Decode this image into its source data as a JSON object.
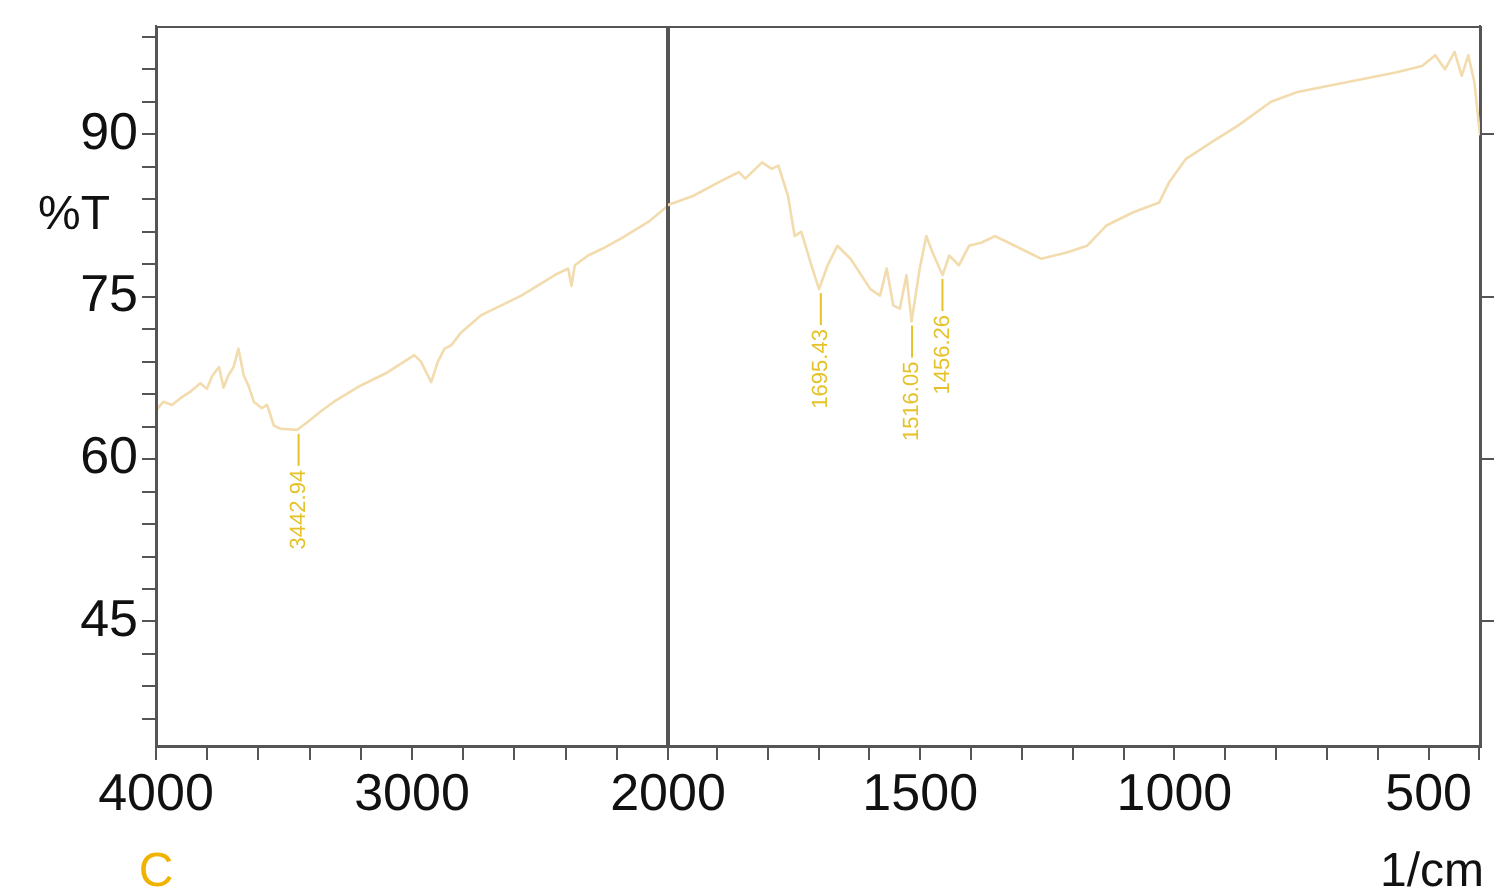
{
  "chart_data": [
    {
      "type": "line",
      "ylabel": "%T",
      "xlim": [
        4000,
        2000
      ],
      "ylim": [
        33.5,
        100
      ],
      "xticks": [
        4000,
        {
          "value": 3800,
          "label": null
        },
        {
          "value": 3600,
          "label": null
        },
        {
          "value": 3400,
          "label": null
        },
        {
          "value": 3200,
          "label": null
        },
        3000,
        {
          "value": 2800,
          "label": null
        },
        {
          "value": 2600,
          "label": null
        },
        {
          "value": 2400,
          "label": null
        },
        {
          "value": 2200,
          "label": null
        },
        2000
      ],
      "yticks": [
        {
          "value": 99,
          "label": null
        },
        {
          "value": 96,
          "label": null
        },
        {
          "value": 93,
          "label": null
        },
        90,
        {
          "value": 87,
          "label": null
        },
        {
          "value": 84,
          "label": null
        },
        {
          "value": 81,
          "label": null
        },
        {
          "value": 78,
          "label": null
        },
        75,
        {
          "value": 72,
          "label": null
        },
        {
          "value": 69,
          "label": null
        },
        {
          "value": 66,
          "label": null
        },
        {
          "value": 63,
          "label": null
        },
        60,
        {
          "value": 57,
          "label": null
        },
        {
          "value": 54,
          "label": null
        },
        {
          "value": 51,
          "label": null
        },
        {
          "value": 48,
          "label": null
        },
        45,
        {
          "value": 42,
          "label": null
        },
        {
          "value": 39,
          "label": null
        },
        {
          "value": 36,
          "label": null
        }
      ],
      "series": [
        {
          "color": "#f2dcae",
          "x": [
            4000,
            3971,
            3937,
            3906,
            3867,
            3827,
            3801,
            3780,
            3754,
            3736,
            3718,
            3697,
            3678,
            3657,
            3639,
            3618,
            3587,
            3566,
            3540,
            3514,
            3449,
            3409,
            3357,
            3305,
            3200,
            3096,
            2991,
            2965,
            2925,
            2899,
            2873,
            2847,
            2808,
            2729,
            2573,
            2442,
            2390,
            2377,
            2364,
            2312,
            2259,
            2181,
            2077,
            2000
          ],
          "values": [
            64.5,
            65.3,
            65.0,
            65.6,
            66.2,
            67.0,
            66.5,
            67.7,
            68.5,
            66.6,
            67.7,
            68.5,
            70.2,
            67.7,
            66.8,
            65.3,
            64.7,
            65.0,
            63.1,
            62.8,
            62.7,
            63.4,
            64.4,
            65.3,
            66.8,
            68.0,
            69.6,
            69.0,
            67.1,
            69.0,
            70.2,
            70.5,
            71.7,
            73.3,
            75.1,
            77.0,
            77.6,
            76.0,
            77.9,
            78.8,
            79.4,
            80.4,
            81.9,
            83.4
          ]
        }
      ],
      "annotations": [
        {
          "text": "3442.94",
          "x": 3442.94,
          "y": 62.7
        },
        "C"
      ]
    },
    {
      "type": "line",
      "xlabel": "1/cm",
      "xlim": [
        2000,
        399
      ],
      "ylim": [
        33.5,
        100
      ],
      "tick_labels": "x",
      "xticks": [
        {
          "value": 1900,
          "label": null
        },
        {
          "value": 1800,
          "label": null
        },
        {
          "value": 1700,
          "label": null
        },
        {
          "value": 1600,
          "label": null
        },
        1500,
        {
          "value": 1400,
          "label": null
        },
        {
          "value": 1300,
          "label": null
        },
        {
          "value": 1200,
          "label": null
        },
        {
          "value": 1100,
          "label": null
        },
        1000,
        {
          "value": 900,
          "label": null
        },
        {
          "value": 800,
          "label": null
        },
        {
          "value": 700,
          "label": null
        },
        {
          "value": 600,
          "label": null
        },
        500,
        {
          "value": 400,
          "label": null
        }
      ],
      "yticks": [
        90,
        75,
        60,
        45
      ],
      "series": [
        {
          "color": "#f2dcae",
          "x": [
            2000,
            1947,
            1895,
            1857,
            1844,
            1811,
            1792,
            1779,
            1760,
            1747,
            1734,
            1714,
            1699,
            1682,
            1663,
            1637,
            1598,
            1579,
            1566,
            1553,
            1540,
            1527,
            1517,
            1501,
            1488,
            1476,
            1456,
            1443,
            1424,
            1404,
            1379,
            1353,
            1327,
            1301,
            1262,
            1210,
            1172,
            1133,
            1081,
            1030,
            1010,
            978,
            926,
            875,
            810,
            758,
            694,
            629,
            565,
            513,
            487,
            468,
            449,
            435,
            422,
            410,
            399
          ],
          "values": [
            83.4,
            84.3,
            85.6,
            86.5,
            85.9,
            87.4,
            86.8,
            87.1,
            84.3,
            80.6,
            81.0,
            77.9,
            75.7,
            77.9,
            79.7,
            78.5,
            75.7,
            75.1,
            77.6,
            74.2,
            73.9,
            77.0,
            72.7,
            77.6,
            80.6,
            79.1,
            77.0,
            78.8,
            77.9,
            79.7,
            80.0,
            80.6,
            80.0,
            79.4,
            78.5,
            79.1,
            79.7,
            81.6,
            82.8,
            83.7,
            85.6,
            87.7,
            89.3,
            90.8,
            93.0,
            93.9,
            94.5,
            95.1,
            95.7,
            96.3,
            97.3,
            96.0,
            97.6,
            95.4,
            97.3,
            94.8,
            89.9
          ]
        }
      ],
      "annotations": [
        {
          "text": "1695.43",
          "x": 1695.43,
          "y": 75.7
        },
        {
          "text": "1516.05",
          "x": 1516.05,
          "y": 72.7
        },
        {
          "text": "1456.26",
          "x": 1456.26,
          "y": 77.0
        }
      ]
    }
  ]
}
